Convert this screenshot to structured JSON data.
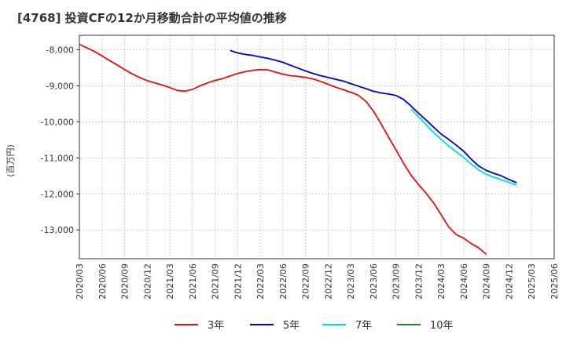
{
  "chart_data": {
    "type": "line",
    "title": "[4768]  投資CFの12か月移動合計の平均値の推移",
    "ylabel": "(百万円)",
    "xlabel": "",
    "ylim": [
      -13800,
      -7600
    ],
    "yticks": [
      -8000,
      -9000,
      -10000,
      -11000,
      -12000,
      -13000
    ],
    "ytick_labels": [
      "-8,000",
      "-9,000",
      "-10,000",
      "-11,000",
      "-12,000",
      "-13,000"
    ],
    "x_ticks": [
      "2020/03",
      "2020/06",
      "2020/09",
      "2020/12",
      "2021/03",
      "2021/06",
      "2021/09",
      "2021/12",
      "2022/03",
      "2022/06",
      "2022/09",
      "2022/12",
      "2023/03",
      "2023/06",
      "2023/09",
      "2023/12",
      "2024/03",
      "2024/06",
      "2024/09",
      "2024/12",
      "2025/03",
      "2025/06"
    ],
    "grid": true,
    "legend_position": "bottom",
    "series": [
      {
        "name": "3年",
        "color": "#dd1111",
        "start": "2020/03",
        "values": [
          -7850,
          -7950,
          -8050,
          -8170,
          -8300,
          -8420,
          -8550,
          -8670,
          -8770,
          -8860,
          -8920,
          -8980,
          -9050,
          -9130,
          -9150,
          -9100,
          -9000,
          -8920,
          -8850,
          -8800,
          -8730,
          -8660,
          -8610,
          -8570,
          -8550,
          -8560,
          -8620,
          -8680,
          -8720,
          -8740,
          -8770,
          -8810,
          -8880,
          -8960,
          -9040,
          -9110,
          -9180,
          -9260,
          -9430,
          -9700,
          -10050,
          -10420,
          -10780,
          -11150,
          -11480,
          -11740,
          -11980,
          -12250,
          -12580,
          -12920,
          -13130,
          -13230,
          -13380,
          -13500,
          -13680
        ]
      },
      {
        "name": "5年",
        "color": "#0000cc",
        "start": "2021/11",
        "values": [
          -8020,
          -8090,
          -8130,
          -8160,
          -8200,
          -8240,
          -8290,
          -8350,
          -8430,
          -8510,
          -8590,
          -8660,
          -8720,
          -8770,
          -8820,
          -8870,
          -8940,
          -9010,
          -9080,
          -9150,
          -9200,
          -9230,
          -9270,
          -9380,
          -9560,
          -9760,
          -9950,
          -10150,
          -10340,
          -10490,
          -10650,
          -10820,
          -11040,
          -11230,
          -11350,
          -11430,
          -11500,
          -11600,
          -11690
        ]
      },
      {
        "name": "7年",
        "color": "#00dddd",
        "start": "2023/11",
        "values": [
          -9640,
          -9860,
          -10080,
          -10300,
          -10490,
          -10670,
          -10830,
          -10990,
          -11170,
          -11340,
          -11460,
          -11540,
          -11610,
          -11680,
          -11760
        ]
      },
      {
        "name": "10年",
        "color": "#228B22",
        "start": "2023/11",
        "values": []
      }
    ]
  }
}
